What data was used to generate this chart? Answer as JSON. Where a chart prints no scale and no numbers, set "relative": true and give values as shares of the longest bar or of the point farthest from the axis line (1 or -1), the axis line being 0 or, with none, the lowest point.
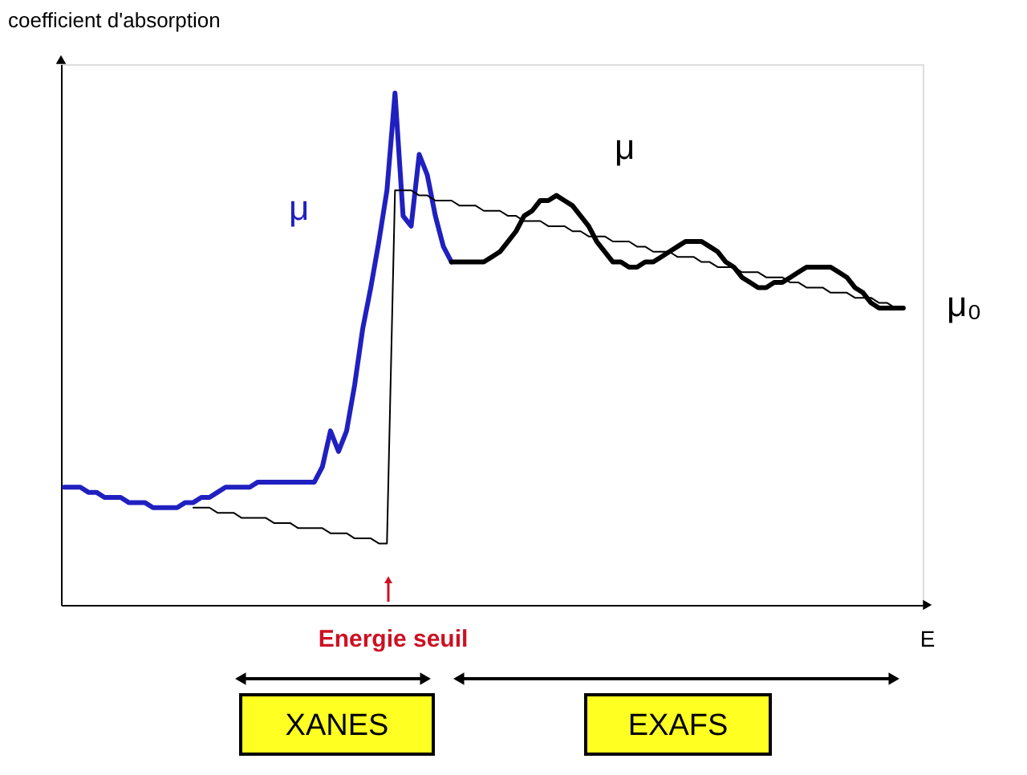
{
  "chart_data": {
    "type": "line",
    "relative": true,
    "ylabel": "coefficient d'absorption",
    "xlabel": "E",
    "categories": [
      null,
      null,
      null,
      null,
      null,
      null,
      null,
      null,
      null,
      null,
      null,
      null,
      null,
      null,
      null,
      null,
      null,
      null,
      null,
      null,
      null,
      null,
      null,
      null,
      null,
      null,
      null,
      null,
      null,
      null,
      null,
      null,
      null,
      null,
      null,
      null,
      null,
      null,
      null,
      null,
      null,
      null,
      null,
      null,
      null,
      null,
      null,
      null,
      null,
      null,
      null,
      null,
      null,
      null,
      null,
      null,
      null,
      null,
      null,
      null,
      null,
      null,
      null,
      null,
      null,
      null,
      null,
      null,
      null,
      null,
      null,
      null,
      null,
      null,
      null,
      null,
      null,
      null,
      null,
      null,
      null,
      null,
      null,
      null,
      null,
      null,
      null,
      null,
      null,
      null,
      null,
      null,
      null,
      null,
      null,
      null,
      null,
      null,
      null,
      null,
      null,
      null,
      null,
      null,
      null
    ],
    "series": [
      {
        "name": "μ",
        "color": "#2020c0",
        "values": [
          0.23,
          0.23,
          0.23,
          0.22,
          0.22,
          0.21,
          0.21,
          0.21,
          0.2,
          0.2,
          0.2,
          0.19,
          0.19,
          0.19,
          0.19,
          0.2,
          0.2,
          0.21,
          0.21,
          0.22,
          0.23,
          0.23,
          0.23,
          0.23,
          0.24,
          0.24,
          0.24,
          0.24,
          0.24,
          0.24,
          0.24,
          0.24,
          0.27,
          0.34,
          0.3,
          0.34,
          0.43,
          0.54,
          0.62,
          0.71,
          0.81,
          1.0,
          0.76,
          0.74,
          0.88,
          0.84,
          0.76,
          0.7,
          0.67,
          null,
          null,
          null,
          null,
          null,
          null,
          null,
          null,
          null,
          null,
          null,
          null,
          null,
          null,
          null,
          null,
          null,
          null,
          null,
          null,
          null,
          null,
          null,
          null,
          null,
          null,
          null,
          null,
          null,
          null,
          null,
          null,
          null,
          null,
          null,
          null,
          null,
          null,
          null,
          null,
          null,
          null,
          null,
          null,
          null,
          null,
          null,
          null,
          null,
          null,
          null,
          null,
          null,
          null,
          null,
          null
        ]
      },
      {
        "name": "μ",
        "color": "#000000",
        "values": [
          null,
          null,
          null,
          null,
          null,
          null,
          null,
          null,
          null,
          null,
          null,
          null,
          null,
          null,
          null,
          null,
          null,
          null,
          null,
          null,
          null,
          null,
          null,
          null,
          null,
          null,
          null,
          null,
          null,
          null,
          null,
          null,
          null,
          null,
          null,
          null,
          null,
          null,
          null,
          null,
          null,
          null,
          null,
          null,
          null,
          null,
          null,
          null,
          0.67,
          0.67,
          0.67,
          0.67,
          0.67,
          0.68,
          0.69,
          0.71,
          0.73,
          0.76,
          0.77,
          0.79,
          0.79,
          0.8,
          0.79,
          0.78,
          0.76,
          0.74,
          0.71,
          0.69,
          0.67,
          0.67,
          0.66,
          0.66,
          0.67,
          0.67,
          0.68,
          0.69,
          0.7,
          0.71,
          0.71,
          0.71,
          0.7,
          0.69,
          0.67,
          0.66,
          0.64,
          0.63,
          0.62,
          0.62,
          0.63,
          0.63,
          0.64,
          0.65,
          0.66,
          0.66,
          0.66,
          0.66,
          0.65,
          0.64,
          0.62,
          0.61,
          0.59,
          0.58,
          0.58,
          0.58,
          0.58
        ]
      },
      {
        "name": "μ₀",
        "color": "#000000",
        "values": [
          null,
          null,
          null,
          null,
          null,
          null,
          null,
          null,
          null,
          null,
          null,
          null,
          null,
          null,
          null,
          null,
          0.19,
          0.19,
          0.19,
          0.18,
          0.18,
          0.18,
          0.17,
          0.17,
          0.17,
          0.17,
          0.16,
          0.16,
          0.16,
          0.15,
          0.15,
          0.15,
          0.15,
          0.14,
          0.14,
          0.14,
          0.13,
          0.13,
          0.13,
          0.12,
          0.12,
          0.81,
          0.81,
          0.81,
          0.8,
          0.8,
          0.79,
          0.79,
          0.79,
          0.78,
          0.78,
          0.78,
          0.77,
          0.77,
          0.77,
          0.76,
          0.76,
          0.75,
          0.75,
          0.75,
          0.74,
          0.74,
          0.74,
          0.73,
          0.73,
          0.72,
          0.72,
          0.72,
          0.71,
          0.71,
          0.71,
          0.7,
          0.7,
          0.69,
          0.69,
          0.69,
          0.68,
          0.68,
          0.68,
          0.67,
          0.67,
          0.66,
          0.66,
          0.66,
          0.65,
          0.65,
          0.65,
          0.64,
          0.64,
          0.64,
          0.63,
          0.63,
          0.62,
          0.62,
          0.62,
          0.61,
          0.61,
          0.61,
          0.6,
          0.6,
          0.6,
          0.59,
          0.59,
          0.58,
          0.58
        ]
      }
    ],
    "annotations": [
      "Energie seuil",
      "XANES",
      "EXAFS"
    ]
  }
}
